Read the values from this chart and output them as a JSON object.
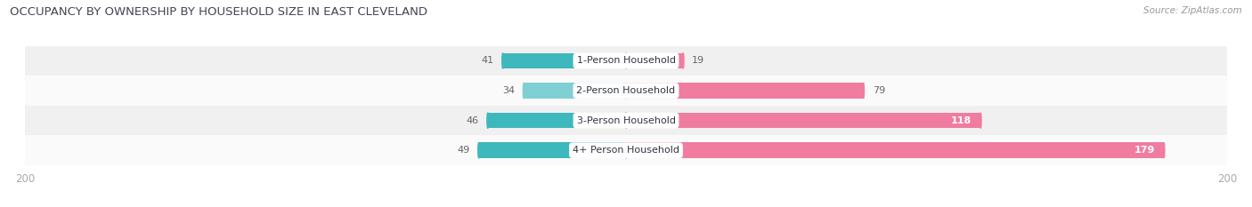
{
  "title": "OCCUPANCY BY OWNERSHIP BY HOUSEHOLD SIZE IN EAST CLEVELAND",
  "source": "Source: ZipAtlas.com",
  "categories": [
    "1-Person Household",
    "2-Person Household",
    "3-Person Household",
    "4+ Person Household"
  ],
  "owner_values": [
    41,
    34,
    46,
    49
  ],
  "renter_values": [
    19,
    79,
    118,
    179
  ],
  "owner_colors": [
    "#3db8bc",
    "#80cfd2",
    "#3db8bc",
    "#3db8bc"
  ],
  "renter_color": "#f07ca0",
  "max_value": 200,
  "label_color": "#666666",
  "title_color": "#444455",
  "source_color": "#999999",
  "axis_label_color": "#aaaaaa",
  "row_bg_odd": "#f0f0f0",
  "row_bg_even": "#fafafa",
  "fig_bg": "#ffffff",
  "figsize": [
    14.06,
    2.33
  ],
  "dpi": 100
}
